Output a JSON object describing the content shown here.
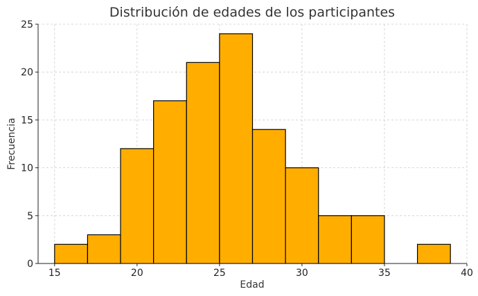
{
  "chart_data": {
    "type": "bar",
    "title": "Distribución de edades de los participantes",
    "xlabel": "Edad",
    "ylabel": "Frecuencia",
    "bins": [
      {
        "start": 15,
        "end": 17,
        "count": 2
      },
      {
        "start": 17,
        "end": 19,
        "count": 3
      },
      {
        "start": 19,
        "end": 21,
        "count": 12
      },
      {
        "start": 21,
        "end": 23,
        "count": 17
      },
      {
        "start": 23,
        "end": 25,
        "count": 21
      },
      {
        "start": 25,
        "end": 27,
        "count": 24
      },
      {
        "start": 27,
        "end": 29,
        "count": 14
      },
      {
        "start": 29,
        "end": 31,
        "count": 10
      },
      {
        "start": 31,
        "end": 33,
        "count": 5
      },
      {
        "start": 33,
        "end": 35,
        "count": 5
      },
      {
        "start": 35,
        "end": 37,
        "count": 0
      },
      {
        "start": 37,
        "end": 39,
        "count": 2
      }
    ],
    "xlim": [
      14,
      40
    ],
    "ylim": [
      0,
      25
    ],
    "xticks": [
      15,
      20,
      25,
      30,
      35,
      40
    ],
    "yticks": [
      0,
      5,
      10,
      15,
      20,
      25
    ],
    "grid": true,
    "bar_color": "#FFAE00",
    "edge_color": "#000000"
  }
}
